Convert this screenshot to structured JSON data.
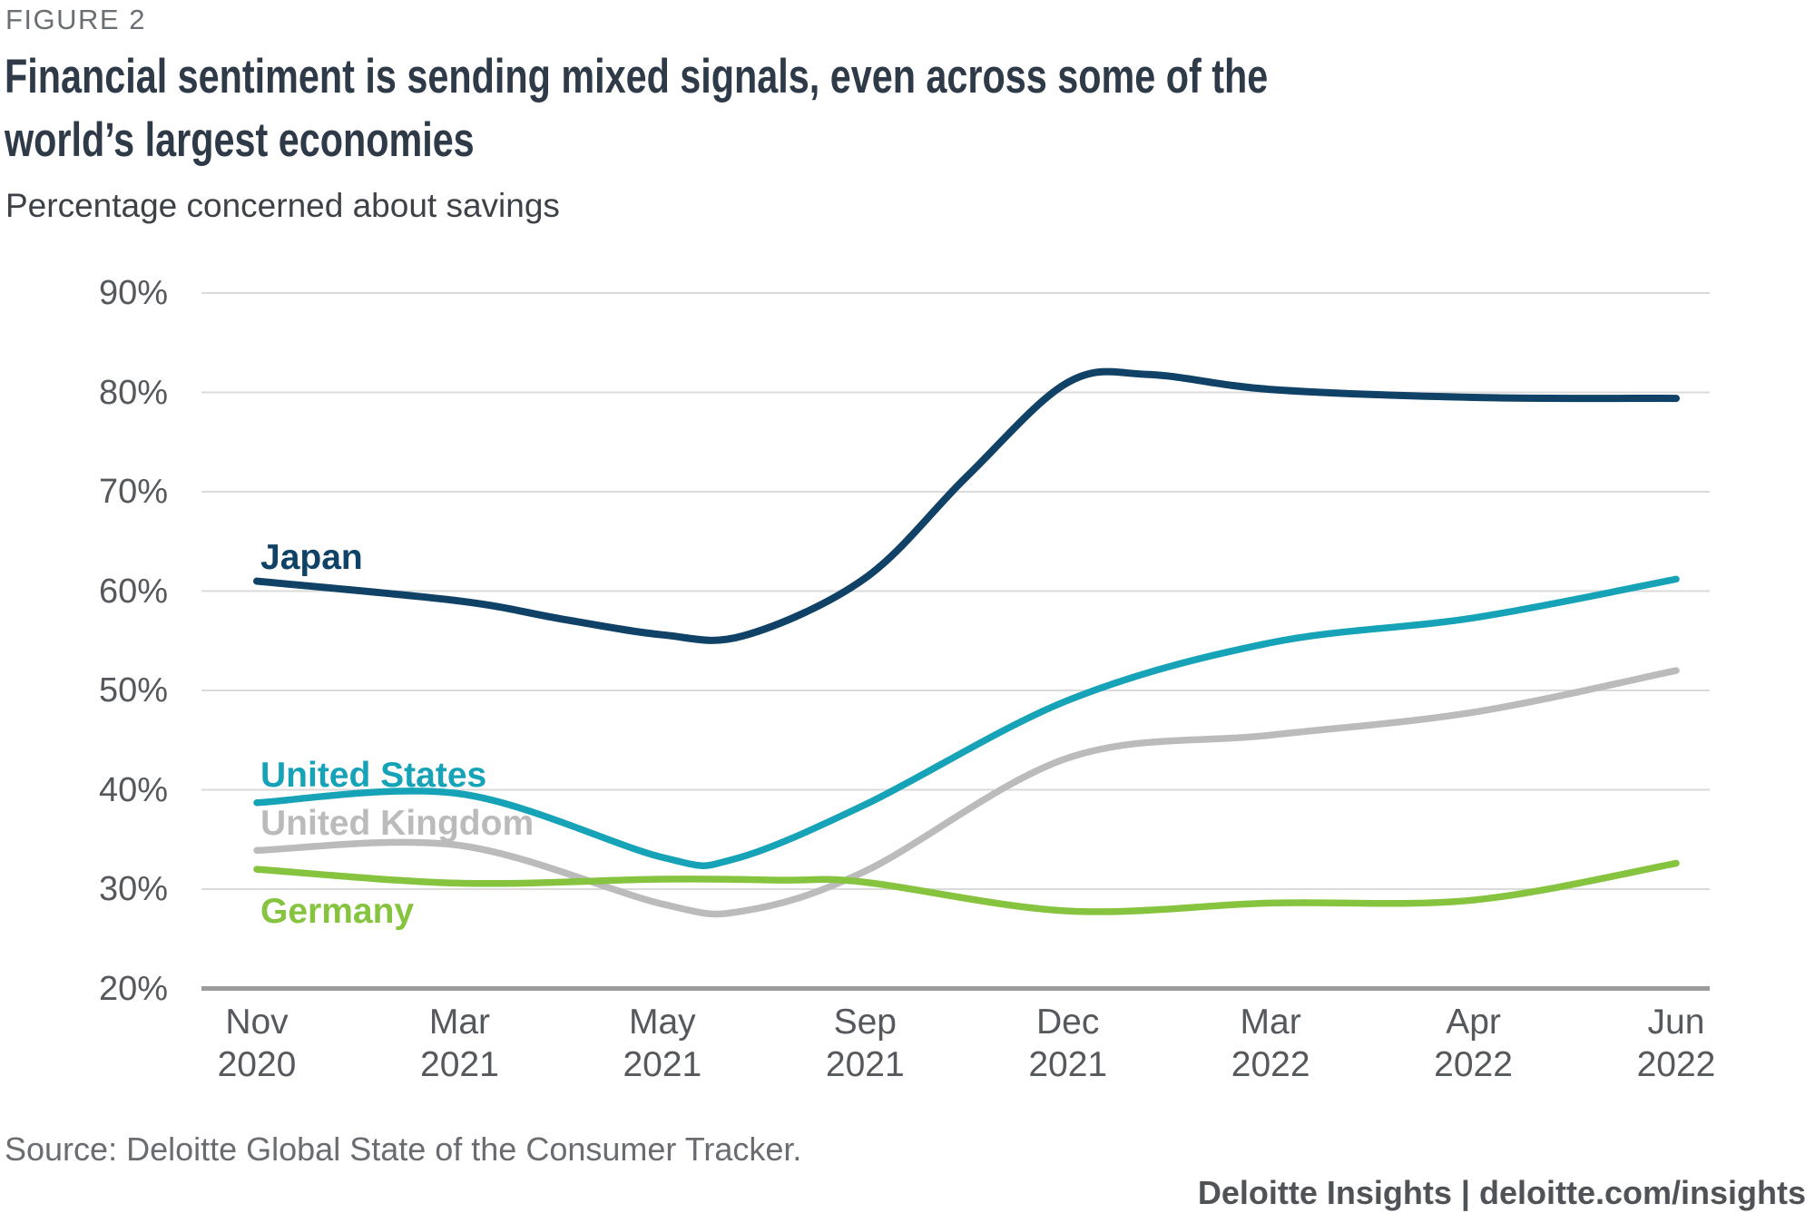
{
  "page": {
    "figure_label": "FIGURE 2",
    "source": "Source: Deloitte Global State of the Consumer Tracker.",
    "brand": "Deloitte Insights | deloitte.com/insights"
  },
  "chart_data": {
    "type": "line",
    "title": "Financial sentiment is sending mixed signals, even across some of the world’s largest economies",
    "title_lines": [
      "Financial sentiment is sending mixed signals, even across some of the",
      "world’s largest economies"
    ],
    "subtitle": "Percentage concerned about savings",
    "ylabel": "Percentage concerned about savings",
    "ylim": [
      20,
      90
    ],
    "y_ticks": [
      "90%",
      "80%",
      "70%",
      "60%",
      "50%",
      "40%",
      "30%",
      "20%"
    ],
    "x_ticks": [
      [
        "Nov",
        "2020"
      ],
      [
        "Mar",
        "2021"
      ],
      [
        "May",
        "2021"
      ],
      [
        "Sep",
        "2021"
      ],
      [
        "Dec",
        "2021"
      ],
      [
        "Mar",
        "2022"
      ],
      [
        "Apr",
        "2022"
      ],
      [
        "Jun",
        "2022"
      ]
    ],
    "grid": "horizontal",
    "legend_position": "inline-labels",
    "colors": {
      "gridline": "#dadada",
      "axis_line": "#9b9b9b",
      "tick_text": "#55585c"
    },
    "series": [
      {
        "name": "Japan",
        "color": "#0f4266",
        "values_at_ticks": [
          61,
          59,
          55.5,
          61,
          81,
          80.3,
          79.5,
          79.4
        ],
        "points": [
          [
            0,
            61
          ],
          [
            1,
            59
          ],
          [
            1.5,
            57.2
          ],
          [
            2,
            55.6
          ],
          [
            2.4,
            55.5
          ],
          [
            3,
            61.3
          ],
          [
            3.5,
            71.5
          ],
          [
            4,
            81
          ],
          [
            4.4,
            81.8
          ],
          [
            5,
            80.3
          ],
          [
            6,
            79.5
          ],
          [
            7,
            79.4
          ]
        ]
      },
      {
        "name": "United States",
        "color": "#16a3b8",
        "values_at_ticks": [
          38.7,
          39.6,
          33,
          38.5,
          49,
          54.8,
          57.3,
          61.2
        ],
        "points": [
          [
            0,
            38.7
          ],
          [
            1,
            39.6
          ],
          [
            2,
            33.2
          ],
          [
            2.35,
            33
          ],
          [
            3,
            38.5
          ],
          [
            4,
            49
          ],
          [
            5,
            54.8
          ],
          [
            6,
            57.3
          ],
          [
            7,
            61.2
          ]
        ]
      },
      {
        "name": "United Kingdom",
        "color": "#bbbbbb",
        "values_at_ticks": [
          33.9,
          34.4,
          28.2,
          31.8,
          43.2,
          45.5,
          47.8,
          52
        ],
        "points": [
          [
            0,
            33.9
          ],
          [
            1,
            34.4
          ],
          [
            2,
            28.5
          ],
          [
            2.4,
            27.8
          ],
          [
            3,
            31.8
          ],
          [
            4,
            43.2
          ],
          [
            5,
            45.5
          ],
          [
            6,
            47.8
          ],
          [
            7,
            52
          ]
        ]
      },
      {
        "name": "Germany",
        "color": "#86c440",
        "values_at_ticks": [
          32,
          30.6,
          31,
          30.7,
          27.8,
          28.6,
          28.9,
          32.6
        ],
        "points": [
          [
            0,
            32
          ],
          [
            1,
            30.6
          ],
          [
            2,
            31
          ],
          [
            2.6,
            30.9
          ],
          [
            3,
            30.7
          ],
          [
            4,
            27.8
          ],
          [
            5,
            28.6
          ],
          [
            6,
            28.9
          ],
          [
            7,
            32.6
          ]
        ]
      }
    ]
  }
}
